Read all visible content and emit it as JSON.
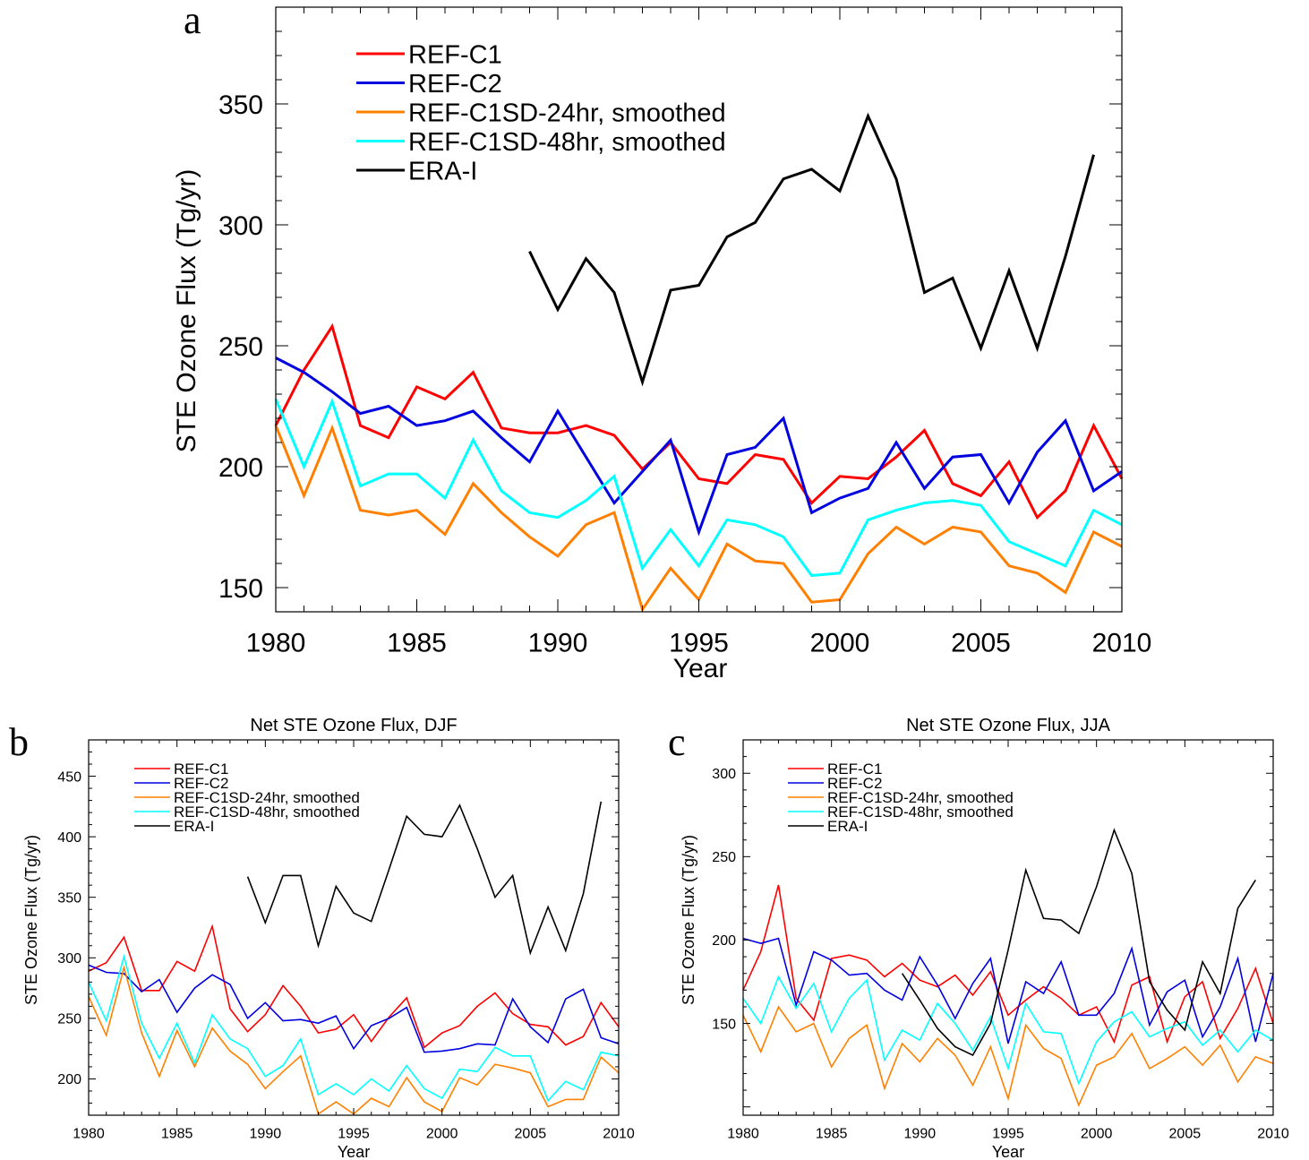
{
  "chart_data": [
    {
      "type": "line",
      "panel_letter": "a",
      "title": "",
      "xlabel": "Year",
      "ylabel": "STE Ozone Flux (Tg/yr)",
      "xlim": [
        1980,
        2010
      ],
      "ylim": [
        140,
        390
      ],
      "xticks": [
        "1980",
        "1985",
        "1990",
        "1995",
        "2000",
        "2005",
        "2010"
      ],
      "yticks": [
        "150",
        "200",
        "250",
        "300",
        "350"
      ],
      "legend": "top-left",
      "series": [
        {
          "name": "REF-C1",
          "color": "#ff0000",
          "x": [
            1980,
            1981,
            1982,
            1983,
            1984,
            1985,
            1986,
            1987,
            1988,
            1989,
            1990,
            1991,
            1992,
            1993,
            1994,
            1995,
            1996,
            1997,
            1998,
            1999,
            2000,
            2001,
            2002,
            2003,
            2004,
            2005,
            2006,
            2007,
            2008,
            2009,
            2010
          ],
          "values": [
            217,
            240,
            258,
            217,
            212,
            233,
            228,
            239,
            216,
            214,
            214,
            217,
            213,
            199,
            210,
            195,
            193,
            205,
            203,
            185,
            196,
            195,
            204,
            215,
            193,
            188,
            202,
            179,
            190,
            217,
            195
          ]
        },
        {
          "name": "REF-C2",
          "color": "#0000e0",
          "x": [
            1980,
            1981,
            1982,
            1983,
            1984,
            1985,
            1986,
            1987,
            1988,
            1989,
            1990,
            1991,
            1992,
            1993,
            1994,
            1995,
            1996,
            1997,
            1998,
            1999,
            2000,
            2001,
            2002,
            2003,
            2004,
            2005,
            2006,
            2007,
            2008,
            2009,
            2010
          ],
          "values": [
            245,
            239,
            231,
            222,
            225,
            217,
            219,
            223,
            212,
            202,
            223,
            204,
            185,
            198,
            211,
            173,
            205,
            208,
            220,
            181,
            187,
            191,
            210,
            191,
            204,
            205,
            185,
            206,
            219,
            190,
            198
          ]
        },
        {
          "name": "REF-C1SD-24hr, smoothed",
          "color": "#ff8000",
          "x": [
            1980,
            1981,
            1982,
            1983,
            1984,
            1985,
            1986,
            1987,
            1988,
            1989,
            1990,
            1991,
            1992,
            1993,
            1994,
            1995,
            1996,
            1997,
            1998,
            1999,
            2000,
            2001,
            2002,
            2003,
            2004,
            2005,
            2006,
            2007,
            2008,
            2009,
            2010
          ],
          "values": [
            217,
            188,
            216,
            182,
            180,
            182,
            172,
            193,
            181,
            171,
            163,
            176,
            181,
            141,
            158,
            145,
            168,
            161,
            160,
            144,
            145,
            164,
            175,
            168,
            175,
            173,
            159,
            156,
            148,
            173,
            167
          ]
        },
        {
          "name": "REF-C1SD-48hr, smoothed",
          "color": "#00ffff",
          "x": [
            1980,
            1981,
            1982,
            1983,
            1984,
            1985,
            1986,
            1987,
            1988,
            1989,
            1990,
            1991,
            1992,
            1993,
            1994,
            1995,
            1996,
            1997,
            1998,
            1999,
            2000,
            2001,
            2002,
            2003,
            2004,
            2005,
            2006,
            2007,
            2008,
            2009,
            2010
          ],
          "values": [
            228,
            200,
            227,
            192,
            197,
            197,
            187,
            211,
            190,
            181,
            179,
            186,
            196,
            158,
            174,
            159,
            178,
            176,
            171,
            155,
            156,
            178,
            182,
            185,
            186,
            184,
            169,
            164,
            159,
            182,
            176
          ]
        },
        {
          "name": "ERA-I",
          "color": "#000000",
          "x": [
            1989,
            1990,
            1991,
            1992,
            1993,
            1994,
            1995,
            1996,
            1997,
            1998,
            1999,
            2000,
            2001,
            2002,
            2003,
            2004,
            2005,
            2006,
            2007,
            2008,
            2009
          ],
          "values": [
            289,
            265,
            286,
            272,
            235,
            273,
            275,
            295,
            301,
            319,
            323,
            314,
            345,
            319,
            272,
            278,
            249,
            281,
            249,
            287,
            329
          ]
        }
      ]
    },
    {
      "type": "line",
      "panel_letter": "b",
      "title": "Net STE Ozone Flux, DJF",
      "xlabel": "Year",
      "ylabel": "STE Ozone Flux (Tg/yr)",
      "xlim": [
        1980,
        2010
      ],
      "ylim": [
        170,
        480
      ],
      "xticks": [
        "1980",
        "1985",
        "1990",
        "1995",
        "2000",
        "2005",
        "2010"
      ],
      "yticks": [
        "200",
        "250",
        "300",
        "350",
        "400",
        "450"
      ],
      "legend": "top-left",
      "series": [
        {
          "name": "REF-C1",
          "color": "#ff0000",
          "x": [
            1980,
            1981,
            1982,
            1983,
            1984,
            1985,
            1986,
            1987,
            1988,
            1989,
            1990,
            1991,
            1992,
            1993,
            1994,
            1995,
            1996,
            1997,
            1998,
            1999,
            2000,
            2001,
            2002,
            2003,
            2004,
            2005,
            2006,
            2007,
            2008,
            2009,
            2010
          ],
          "values": [
            289,
            296,
            317,
            273,
            273,
            297,
            289,
            326,
            258,
            239,
            253,
            277,
            260,
            238,
            241,
            253,
            231,
            251,
            267,
            226,
            238,
            244,
            260,
            271,
            254,
            245,
            243,
            228,
            235,
            263,
            243
          ]
        },
        {
          "name": "REF-C2",
          "color": "#0000e0",
          "x": [
            1980,
            1981,
            1982,
            1983,
            1984,
            1985,
            1986,
            1987,
            1988,
            1989,
            1990,
            1991,
            1992,
            1993,
            1994,
            1995,
            1996,
            1997,
            1998,
            1999,
            2000,
            2001,
            2002,
            2003,
            2004,
            2005,
            2006,
            2007,
            2008,
            2009,
            2010
          ],
          "values": [
            294,
            288,
            287,
            272,
            282,
            255,
            275,
            286,
            278,
            250,
            263,
            248,
            249,
            246,
            252,
            225,
            244,
            250,
            259,
            222,
            223,
            225,
            229,
            228,
            266,
            243,
            230,
            266,
            274,
            234,
            229
          ]
        },
        {
          "name": "REF-C1SD-24hr, smoothed",
          "color": "#ff8000",
          "x": [
            1980,
            1981,
            1982,
            1983,
            1984,
            1985,
            1986,
            1987,
            1988,
            1989,
            1990,
            1991,
            1992,
            1993,
            1994,
            1995,
            1996,
            1997,
            1998,
            1999,
            2000,
            2001,
            2002,
            2003,
            2004,
            2005,
            2006,
            2007,
            2008,
            2009,
            2010
          ],
          "values": [
            268,
            236,
            292,
            238,
            202,
            240,
            210,
            242,
            223,
            212,
            192,
            206,
            219,
            171,
            181,
            171,
            184,
            177,
            201,
            181,
            173,
            201,
            195,
            212,
            209,
            205,
            177,
            183,
            183,
            218,
            205
          ]
        },
        {
          "name": "REF-C1SD-48hr, smoothed",
          "color": "#00ffff",
          "x": [
            1980,
            1981,
            1982,
            1983,
            1984,
            1985,
            1986,
            1987,
            1988,
            1989,
            1990,
            1991,
            1992,
            1993,
            1994,
            1995,
            1996,
            1997,
            1998,
            1999,
            2000,
            2001,
            2002,
            2003,
            2004,
            2005,
            2006,
            2007,
            2008,
            2009,
            2010
          ],
          "values": [
            280,
            248,
            301,
            246,
            217,
            246,
            213,
            253,
            233,
            225,
            202,
            211,
            233,
            187,
            196,
            187,
            200,
            190,
            211,
            192,
            184,
            208,
            206,
            226,
            219,
            219,
            182,
            198,
            191,
            222,
            219
          ]
        },
        {
          "name": "ERA-I",
          "color": "#000000",
          "x": [
            1989,
            1990,
            1991,
            1992,
            1993,
            1994,
            1995,
            1996,
            1997,
            1998,
            1999,
            2000,
            2001,
            2002,
            2003,
            2004,
            2005,
            2006,
            2007,
            2008,
            2009
          ],
          "values": [
            367,
            329,
            368,
            368,
            310,
            359,
            337,
            330,
            373,
            417,
            402,
            400,
            426,
            390,
            350,
            368,
            304,
            342,
            306,
            353,
            429
          ]
        }
      ]
    },
    {
      "type": "line",
      "panel_letter": "c",
      "title": "Net STE Ozone Flux, JJA",
      "xlabel": "Year",
      "ylabel": "STE Ozone Flux (Tg/yr)",
      "xlim": [
        1980,
        2010
      ],
      "ylim": [
        95,
        320
      ],
      "xticks": [
        "1980",
        "1985",
        "1990",
        "1995",
        "2000",
        "2005",
        "2010"
      ],
      "yticks": [
        "150",
        "200",
        "250",
        "300"
      ],
      "legend": "top-left",
      "series": [
        {
          "name": "REF-C1",
          "color": "#ff0000",
          "x": [
            1980,
            1981,
            1982,
            1983,
            1984,
            1985,
            1986,
            1987,
            1988,
            1989,
            1990,
            1991,
            1992,
            1993,
            1994,
            1995,
            1996,
            1997,
            1998,
            1999,
            2000,
            2001,
            2002,
            2003,
            2004,
            2005,
            2006,
            2007,
            2008,
            2009,
            2010
          ],
          "values": [
            170,
            193,
            233,
            165,
            152,
            189,
            191,
            188,
            178,
            186,
            176,
            172,
            179,
            167,
            181,
            155,
            164,
            172,
            165,
            155,
            160,
            139,
            173,
            178,
            139,
            166,
            175,
            141,
            159,
            183,
            150
          ]
        },
        {
          "name": "REF-C2",
          "color": "#0000e0",
          "x": [
            1980,
            1981,
            1982,
            1983,
            1984,
            1985,
            1986,
            1987,
            1988,
            1989,
            1990,
            1991,
            1992,
            1993,
            1994,
            1995,
            1996,
            1997,
            1998,
            1999,
            2000,
            2001,
            2002,
            2003,
            2004,
            2005,
            2006,
            2007,
            2008,
            2009,
            2010
          ],
          "values": [
            201,
            198,
            201,
            161,
            193,
            188,
            179,
            180,
            170,
            164,
            190,
            173,
            153,
            174,
            189,
            138,
            175,
            168,
            187,
            155,
            155,
            168,
            195,
            149,
            169,
            176,
            142,
            160,
            189,
            139,
            180
          ]
        },
        {
          "name": "REF-C1SD-24hr, smoothed",
          "color": "#ff8000",
          "x": [
            1980,
            1981,
            1982,
            1983,
            1984,
            1985,
            1986,
            1987,
            1988,
            1989,
            1990,
            1991,
            1992,
            1993,
            1994,
            1995,
            1996,
            1997,
            1998,
            1999,
            2000,
            2001,
            2002,
            2003,
            2004,
            2005,
            2006,
            2007,
            2008,
            2009,
            2010
          ],
          "values": [
            155,
            133,
            160,
            145,
            150,
            124,
            141,
            149,
            111,
            138,
            127,
            141,
            131,
            113,
            136,
            105,
            149,
            135,
            129,
            101,
            125,
            130,
            144,
            123,
            129,
            136,
            125,
            137,
            115,
            130,
            126
          ]
        },
        {
          "name": "REF-C1SD-48hr, smoothed",
          "color": "#00ffff",
          "x": [
            1980,
            1981,
            1982,
            1983,
            1984,
            1985,
            1986,
            1987,
            1988,
            1989,
            1990,
            1991,
            1992,
            1993,
            1994,
            1995,
            1996,
            1997,
            1998,
            1999,
            2000,
            2001,
            2002,
            2003,
            2004,
            2005,
            2006,
            2007,
            2008,
            2009,
            2010
          ],
          "values": [
            165,
            150,
            178,
            159,
            174,
            145,
            165,
            176,
            128,
            146,
            140,
            162,
            150,
            134,
            154,
            123,
            162,
            145,
            144,
            114,
            139,
            151,
            157,
            142,
            147,
            151,
            137,
            146,
            133,
            146,
            140
          ]
        },
        {
          "name": "ERA-I",
          "color": "#000000",
          "x": [
            1989,
            1990,
            1991,
            1992,
            1993,
            1994,
            1995,
            1996,
            1997,
            1998,
            1999,
            2000,
            2001,
            2002,
            2003,
            2004,
            2005,
            2006,
            2007,
            2008,
            2009
          ],
          "values": [
            180,
            164,
            147,
            136,
            131,
            150,
            194,
            242,
            213,
            212,
            204,
            232,
            266,
            240,
            175,
            158,
            146,
            187,
            168,
            219,
            236
          ]
        }
      ]
    }
  ]
}
